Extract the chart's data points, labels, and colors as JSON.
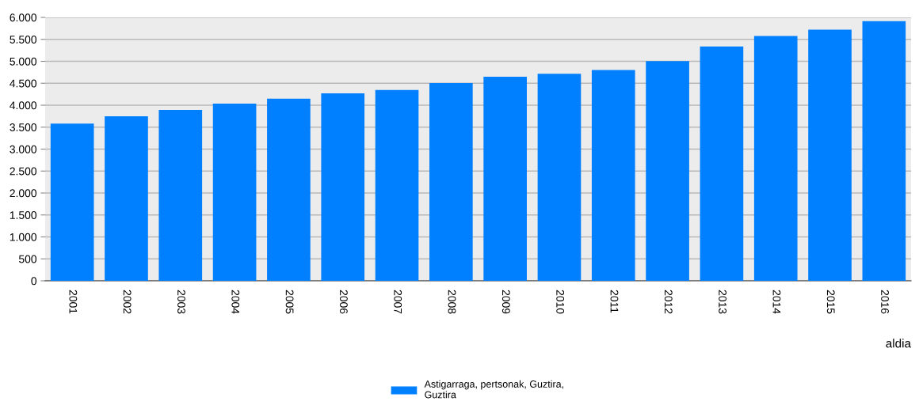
{
  "chart_data": {
    "type": "bar",
    "xlabel": "aldia",
    "categories": [
      "2001",
      "2002",
      "2003",
      "2004",
      "2005",
      "2006",
      "2007",
      "2008",
      "2009",
      "2010",
      "2011",
      "2012",
      "2013",
      "2014",
      "2015",
      "2016"
    ],
    "series": [
      {
        "name": "Astigarraga, pertsonak, Guztira,\nGuztira",
        "color": "#007fff",
        "values": [
          3580,
          3750,
          3890,
          4035,
          4150,
          4270,
          4345,
          4505,
          4650,
          4715,
          4800,
          5005,
          5340,
          5575,
          5720,
          5915
        ]
      }
    ],
    "ylim": [
      0,
      6000
    ],
    "yticks": [
      {
        "value": 0,
        "label": "0"
      },
      {
        "value": 500,
        "label": "500"
      },
      {
        "value": 1000,
        "label": "1.000"
      },
      {
        "value": 1500,
        "label": "1.500"
      },
      {
        "value": 2000,
        "label": "2.000"
      },
      {
        "value": 2500,
        "label": "2.500"
      },
      {
        "value": 3000,
        "label": "3.000"
      },
      {
        "value": 3500,
        "label": "3.500"
      },
      {
        "value": 4000,
        "label": "4.000"
      },
      {
        "value": 4500,
        "label": "4.500"
      },
      {
        "value": 5000,
        "label": "5.000"
      },
      {
        "value": 5500,
        "label": "5.500"
      },
      {
        "value": 6000,
        "label": "6.000"
      }
    ],
    "grid": "y",
    "legend": "bottom"
  }
}
